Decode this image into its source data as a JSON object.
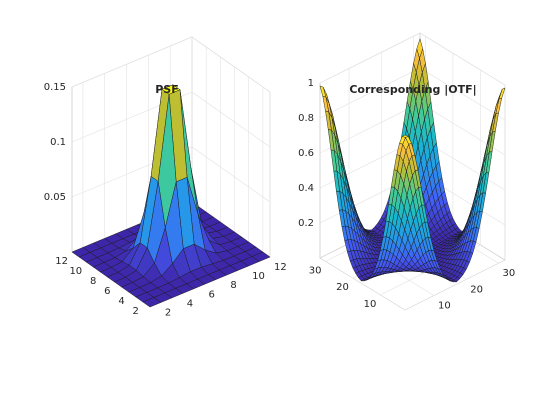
{
  "chart_data": [
    {
      "type": "surface",
      "title": "PSF",
      "grid_size": 12,
      "z_function": "gaussian",
      "gaussian": {
        "center": 6.5,
        "sigma": 1.2,
        "peak": 0.15
      },
      "xlim": [
        1,
        12
      ],
      "ylim": [
        1,
        12
      ],
      "zlim": [
        0,
        0.15
      ],
      "x_ticks": [
        "2",
        "4",
        "6",
        "8",
        "10",
        "12"
      ],
      "y_ticks": [
        "2",
        "4",
        "6",
        "8",
        "10",
        "12"
      ],
      "z_ticks": [
        "0.05",
        "0.1",
        "0.15"
      ],
      "z_tick_values": [
        0.05,
        0.1,
        0.15
      ],
      "x_tick_values": [
        2,
        4,
        6,
        8,
        10,
        12
      ],
      "y_tick_values": [
        2,
        4,
        6,
        8,
        10,
        12
      ],
      "colormap": "parula",
      "grid": true
    },
    {
      "type": "surface",
      "title": "Corresponding |OTF|",
      "grid_size": 32,
      "z_function": "otf",
      "gaussian": {
        "center": 6.5,
        "sigma": 1.2,
        "peak": 0.15
      },
      "xlim": [
        1,
        32
      ],
      "ylim": [
        1,
        32
      ],
      "zlim": [
        0,
        1
      ],
      "x_ticks": [
        "10",
        "20",
        "30"
      ],
      "y_ticks": [
        "10",
        "20",
        "30"
      ],
      "z_ticks": [
        "0.2",
        "0.4",
        "0.6",
        "0.8",
        "1"
      ],
      "z_tick_values": [
        0.2,
        0.4,
        0.6,
        0.8,
        1
      ],
      "x_tick_values": [
        10,
        20,
        30
      ],
      "y_tick_values": [
        10,
        20,
        30
      ],
      "colormap": "parula",
      "grid": true
    }
  ],
  "colors": {
    "edge": "#1a1a1a",
    "box": "#cfcfcf",
    "background": "#ffffff",
    "parula_low": "#3e26a8",
    "parula_high": "#f9fb15"
  }
}
